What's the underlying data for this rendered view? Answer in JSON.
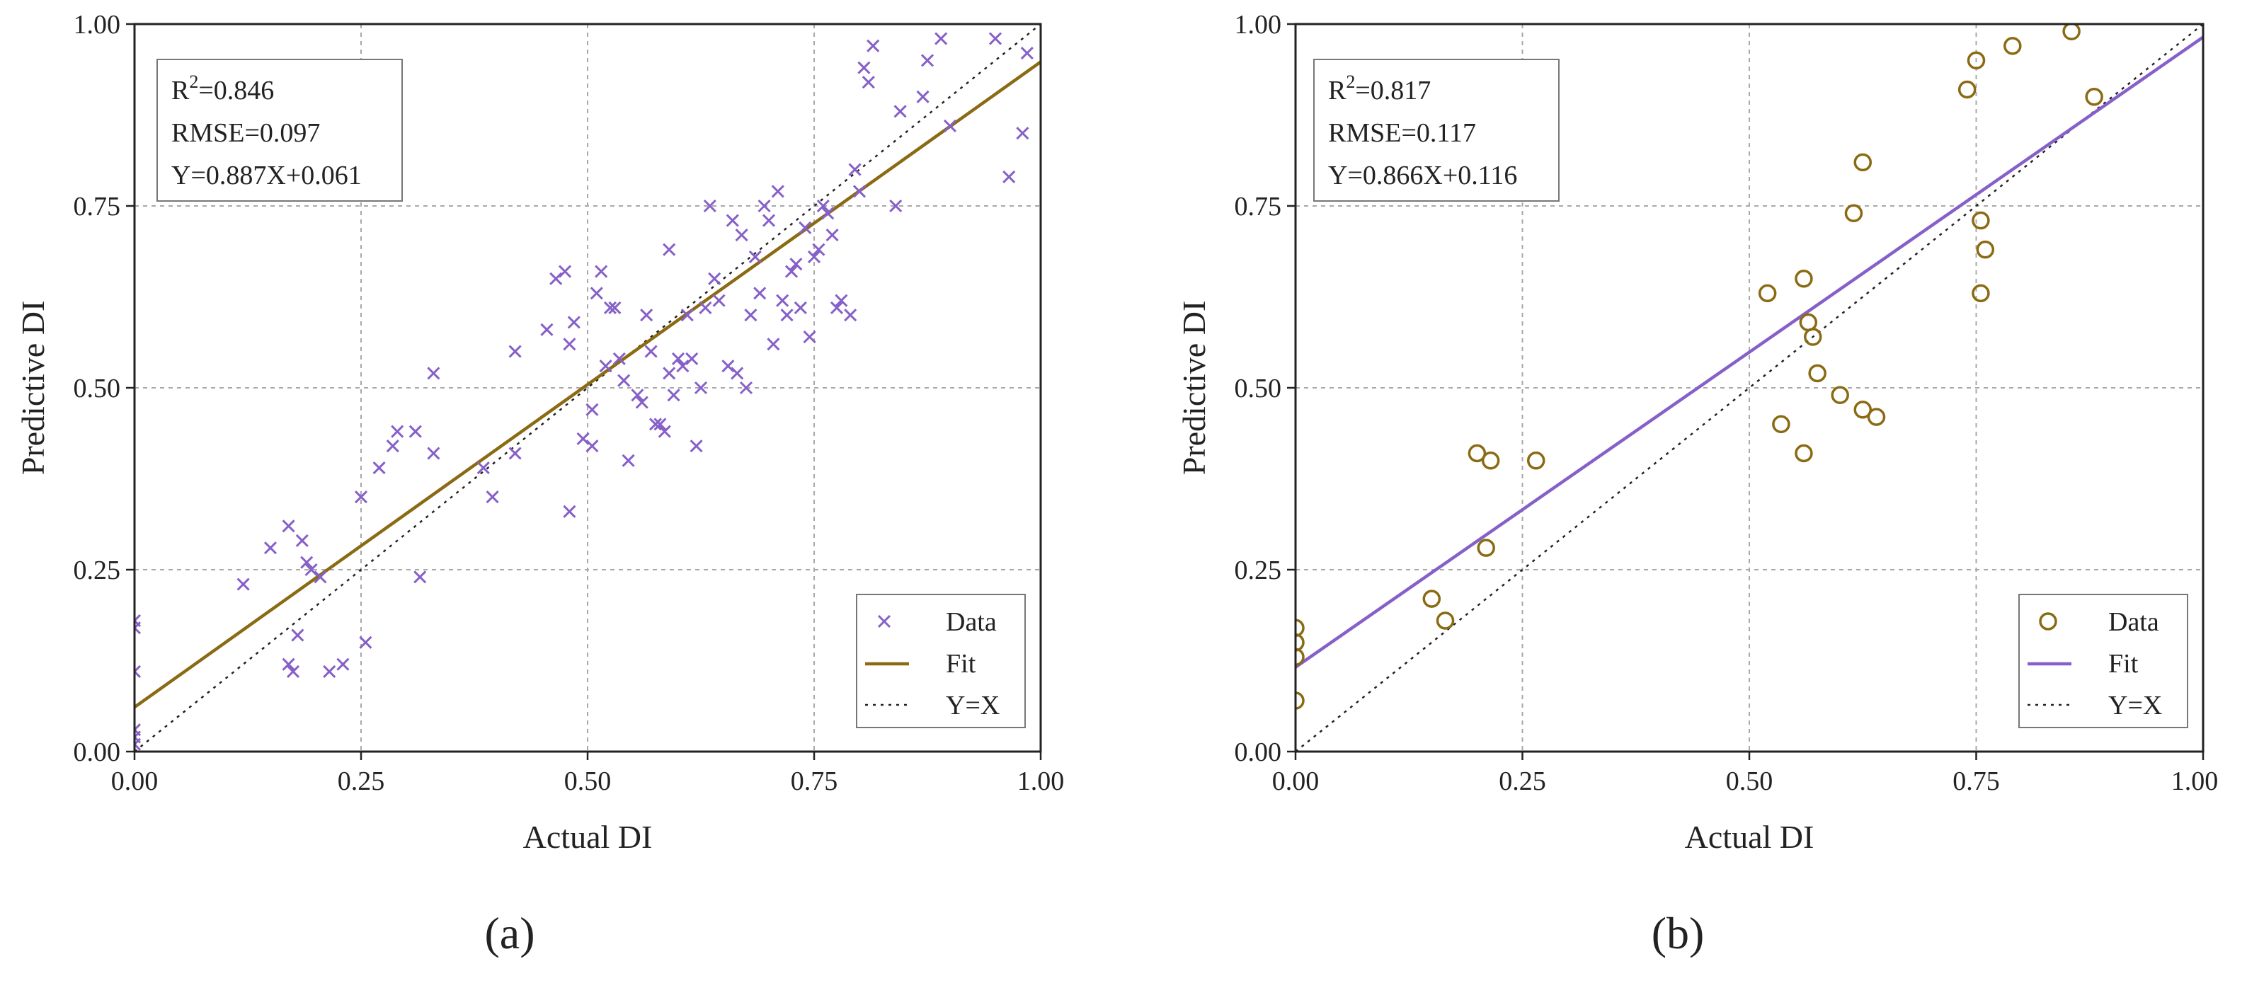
{
  "figure": {
    "label_a": "(a)",
    "label_b": "(b)"
  },
  "colors": {
    "purple": "#8660c8",
    "olive": "#8a6a12",
    "grid": "#a8a8a8",
    "axis": "#222222"
  },
  "chart_data": [
    {
      "type": "scatter",
      "id": "a",
      "panel_label": "(a)",
      "xlabel": "Actual DI",
      "ylabel": "Predictive DI",
      "xlim": [
        0.0,
        1.0
      ],
      "ylim": [
        0.0,
        1.0
      ],
      "xticks": [
        "0.00",
        "0.25",
        "0.50",
        "0.75",
        "1.00"
      ],
      "yticks": [
        "0.00",
        "0.25",
        "0.50",
        "0.75",
        "1.00"
      ],
      "grid": true,
      "marker": "x",
      "data_color": "#8660c8",
      "fit_color": "#8a6a12",
      "stats": {
        "r2_base": "R",
        "r2_sup": "2",
        "r2_value": "=0.846",
        "rmse": "RMSE=0.097",
        "equation": "Y=0.887X+0.061"
      },
      "fit": {
        "slope": 0.887,
        "intercept": 0.061
      },
      "legend": {
        "position": "bottom-right",
        "entries": [
          "Data",
          "Fit",
          "Y=X"
        ]
      },
      "points": [
        [
          0.0,
          0.01
        ],
        [
          0.0,
          0.02
        ],
        [
          0.0,
          0.03
        ],
        [
          0.0,
          0.11
        ],
        [
          0.0,
          0.17
        ],
        [
          0.0,
          0.18
        ],
        [
          0.12,
          0.23
        ],
        [
          0.15,
          0.28
        ],
        [
          0.17,
          0.12
        ],
        [
          0.17,
          0.31
        ],
        [
          0.175,
          0.11
        ],
        [
          0.18,
          0.16
        ],
        [
          0.185,
          0.29
        ],
        [
          0.19,
          0.26
        ],
        [
          0.195,
          0.25
        ],
        [
          0.205,
          0.24
        ],
        [
          0.215,
          0.11
        ],
        [
          0.23,
          0.12
        ],
        [
          0.25,
          0.35
        ],
        [
          0.255,
          0.15
        ],
        [
          0.27,
          0.39
        ],
        [
          0.285,
          0.42
        ],
        [
          0.29,
          0.44
        ],
        [
          0.31,
          0.44
        ],
        [
          0.315,
          0.24
        ],
        [
          0.33,
          0.41
        ],
        [
          0.33,
          0.52
        ],
        [
          0.385,
          0.39
        ],
        [
          0.395,
          0.35
        ],
        [
          0.42,
          0.55
        ],
        [
          0.42,
          0.41
        ],
        [
          0.455,
          0.58
        ],
        [
          0.465,
          0.65
        ],
        [
          0.475,
          0.66
        ],
        [
          0.48,
          0.33
        ],
        [
          0.48,
          0.56
        ],
        [
          0.485,
          0.59
        ],
        [
          0.495,
          0.43
        ],
        [
          0.505,
          0.42
        ],
        [
          0.505,
          0.47
        ],
        [
          0.51,
          0.63
        ],
        [
          0.515,
          0.66
        ],
        [
          0.52,
          0.53
        ],
        [
          0.525,
          0.61
        ],
        [
          0.53,
          0.61
        ],
        [
          0.535,
          0.54
        ],
        [
          0.54,
          0.51
        ],
        [
          0.545,
          0.4
        ],
        [
          0.555,
          0.49
        ],
        [
          0.56,
          0.48
        ],
        [
          0.565,
          0.6
        ],
        [
          0.57,
          0.55
        ],
        [
          0.575,
          0.45
        ],
        [
          0.58,
          0.45
        ],
        [
          0.585,
          0.44
        ],
        [
          0.59,
          0.52
        ],
        [
          0.59,
          0.69
        ],
        [
          0.595,
          0.49
        ],
        [
          0.6,
          0.54
        ],
        [
          0.605,
          0.53
        ],
        [
          0.61,
          0.6
        ],
        [
          0.615,
          0.54
        ],
        [
          0.62,
          0.42
        ],
        [
          0.625,
          0.5
        ],
        [
          0.63,
          0.61
        ],
        [
          0.635,
          0.75
        ],
        [
          0.64,
          0.65
        ],
        [
          0.645,
          0.62
        ],
        [
          0.655,
          0.53
        ],
        [
          0.66,
          0.73
        ],
        [
          0.665,
          0.52
        ],
        [
          0.67,
          0.71
        ],
        [
          0.675,
          0.5
        ],
        [
          0.68,
          0.6
        ],
        [
          0.685,
          0.68
        ],
        [
          0.69,
          0.63
        ],
        [
          0.695,
          0.75
        ],
        [
          0.7,
          0.73
        ],
        [
          0.705,
          0.56
        ],
        [
          0.71,
          0.77
        ],
        [
          0.715,
          0.62
        ],
        [
          0.72,
          0.6
        ],
        [
          0.725,
          0.66
        ],
        [
          0.73,
          0.67
        ],
        [
          0.735,
          0.61
        ],
        [
          0.74,
          0.72
        ],
        [
          0.745,
          0.57
        ],
        [
          0.75,
          0.68
        ],
        [
          0.755,
          0.69
        ],
        [
          0.76,
          0.75
        ],
        [
          0.765,
          0.74
        ],
        [
          0.77,
          0.71
        ],
        [
          0.775,
          0.61
        ],
        [
          0.78,
          0.62
        ],
        [
          0.79,
          0.6
        ],
        [
          0.795,
          0.8
        ],
        [
          0.8,
          0.77
        ],
        [
          0.805,
          0.94
        ],
        [
          0.81,
          0.92
        ],
        [
          0.815,
          0.97
        ],
        [
          0.84,
          0.75
        ],
        [
          0.845,
          0.88
        ],
        [
          0.87,
          0.9
        ],
        [
          0.875,
          0.95
        ],
        [
          0.89,
          0.98
        ],
        [
          0.9,
          0.86
        ],
        [
          0.95,
          0.98
        ],
        [
          0.965,
          0.79
        ],
        [
          0.98,
          0.85
        ],
        [
          0.985,
          0.96
        ]
      ]
    },
    {
      "type": "scatter",
      "id": "b",
      "panel_label": "(b)",
      "xlabel": "Actual DI",
      "ylabel": "Predictive DI",
      "xlim": [
        0.0,
        1.0
      ],
      "ylim": [
        0.0,
        1.0
      ],
      "xticks": [
        "0.00",
        "0.25",
        "0.50",
        "0.75",
        "1.00"
      ],
      "yticks": [
        "0.00",
        "0.25",
        "0.50",
        "0.75",
        "1.00"
      ],
      "grid": true,
      "marker": "o",
      "data_color": "#8a6a12",
      "fit_color": "#8660c8",
      "stats": {
        "r2_base": "R",
        "r2_sup": "2",
        "r2_value": "=0.817",
        "rmse": "RMSE=0.117",
        "equation": "Y=0.866X+0.116"
      },
      "fit": {
        "slope": 0.866,
        "intercept": 0.116
      },
      "legend": {
        "position": "bottom-right",
        "entries": [
          "Data",
          "Fit",
          "Y=X"
        ]
      },
      "points": [
        [
          0.0,
          0.07
        ],
        [
          0.0,
          0.13
        ],
        [
          0.0,
          0.15
        ],
        [
          0.0,
          0.17
        ],
        [
          0.15,
          0.21
        ],
        [
          0.165,
          0.18
        ],
        [
          0.2,
          0.41
        ],
        [
          0.21,
          0.28
        ],
        [
          0.215,
          0.4
        ],
        [
          0.265,
          0.4
        ],
        [
          0.52,
          0.63
        ],
        [
          0.535,
          0.45
        ],
        [
          0.56,
          0.65
        ],
        [
          0.56,
          0.41
        ],
        [
          0.565,
          0.59
        ],
        [
          0.57,
          0.57
        ],
        [
          0.575,
          0.52
        ],
        [
          0.6,
          0.49
        ],
        [
          0.615,
          0.74
        ],
        [
          0.625,
          0.47
        ],
        [
          0.625,
          0.81
        ],
        [
          0.64,
          0.46
        ],
        [
          0.74,
          0.91
        ],
        [
          0.75,
          0.95
        ],
        [
          0.755,
          0.73
        ],
        [
          0.755,
          0.63
        ],
        [
          0.76,
          0.69
        ],
        [
          0.79,
          0.97
        ],
        [
          0.855,
          0.99
        ],
        [
          0.88,
          0.9
        ]
      ]
    }
  ]
}
